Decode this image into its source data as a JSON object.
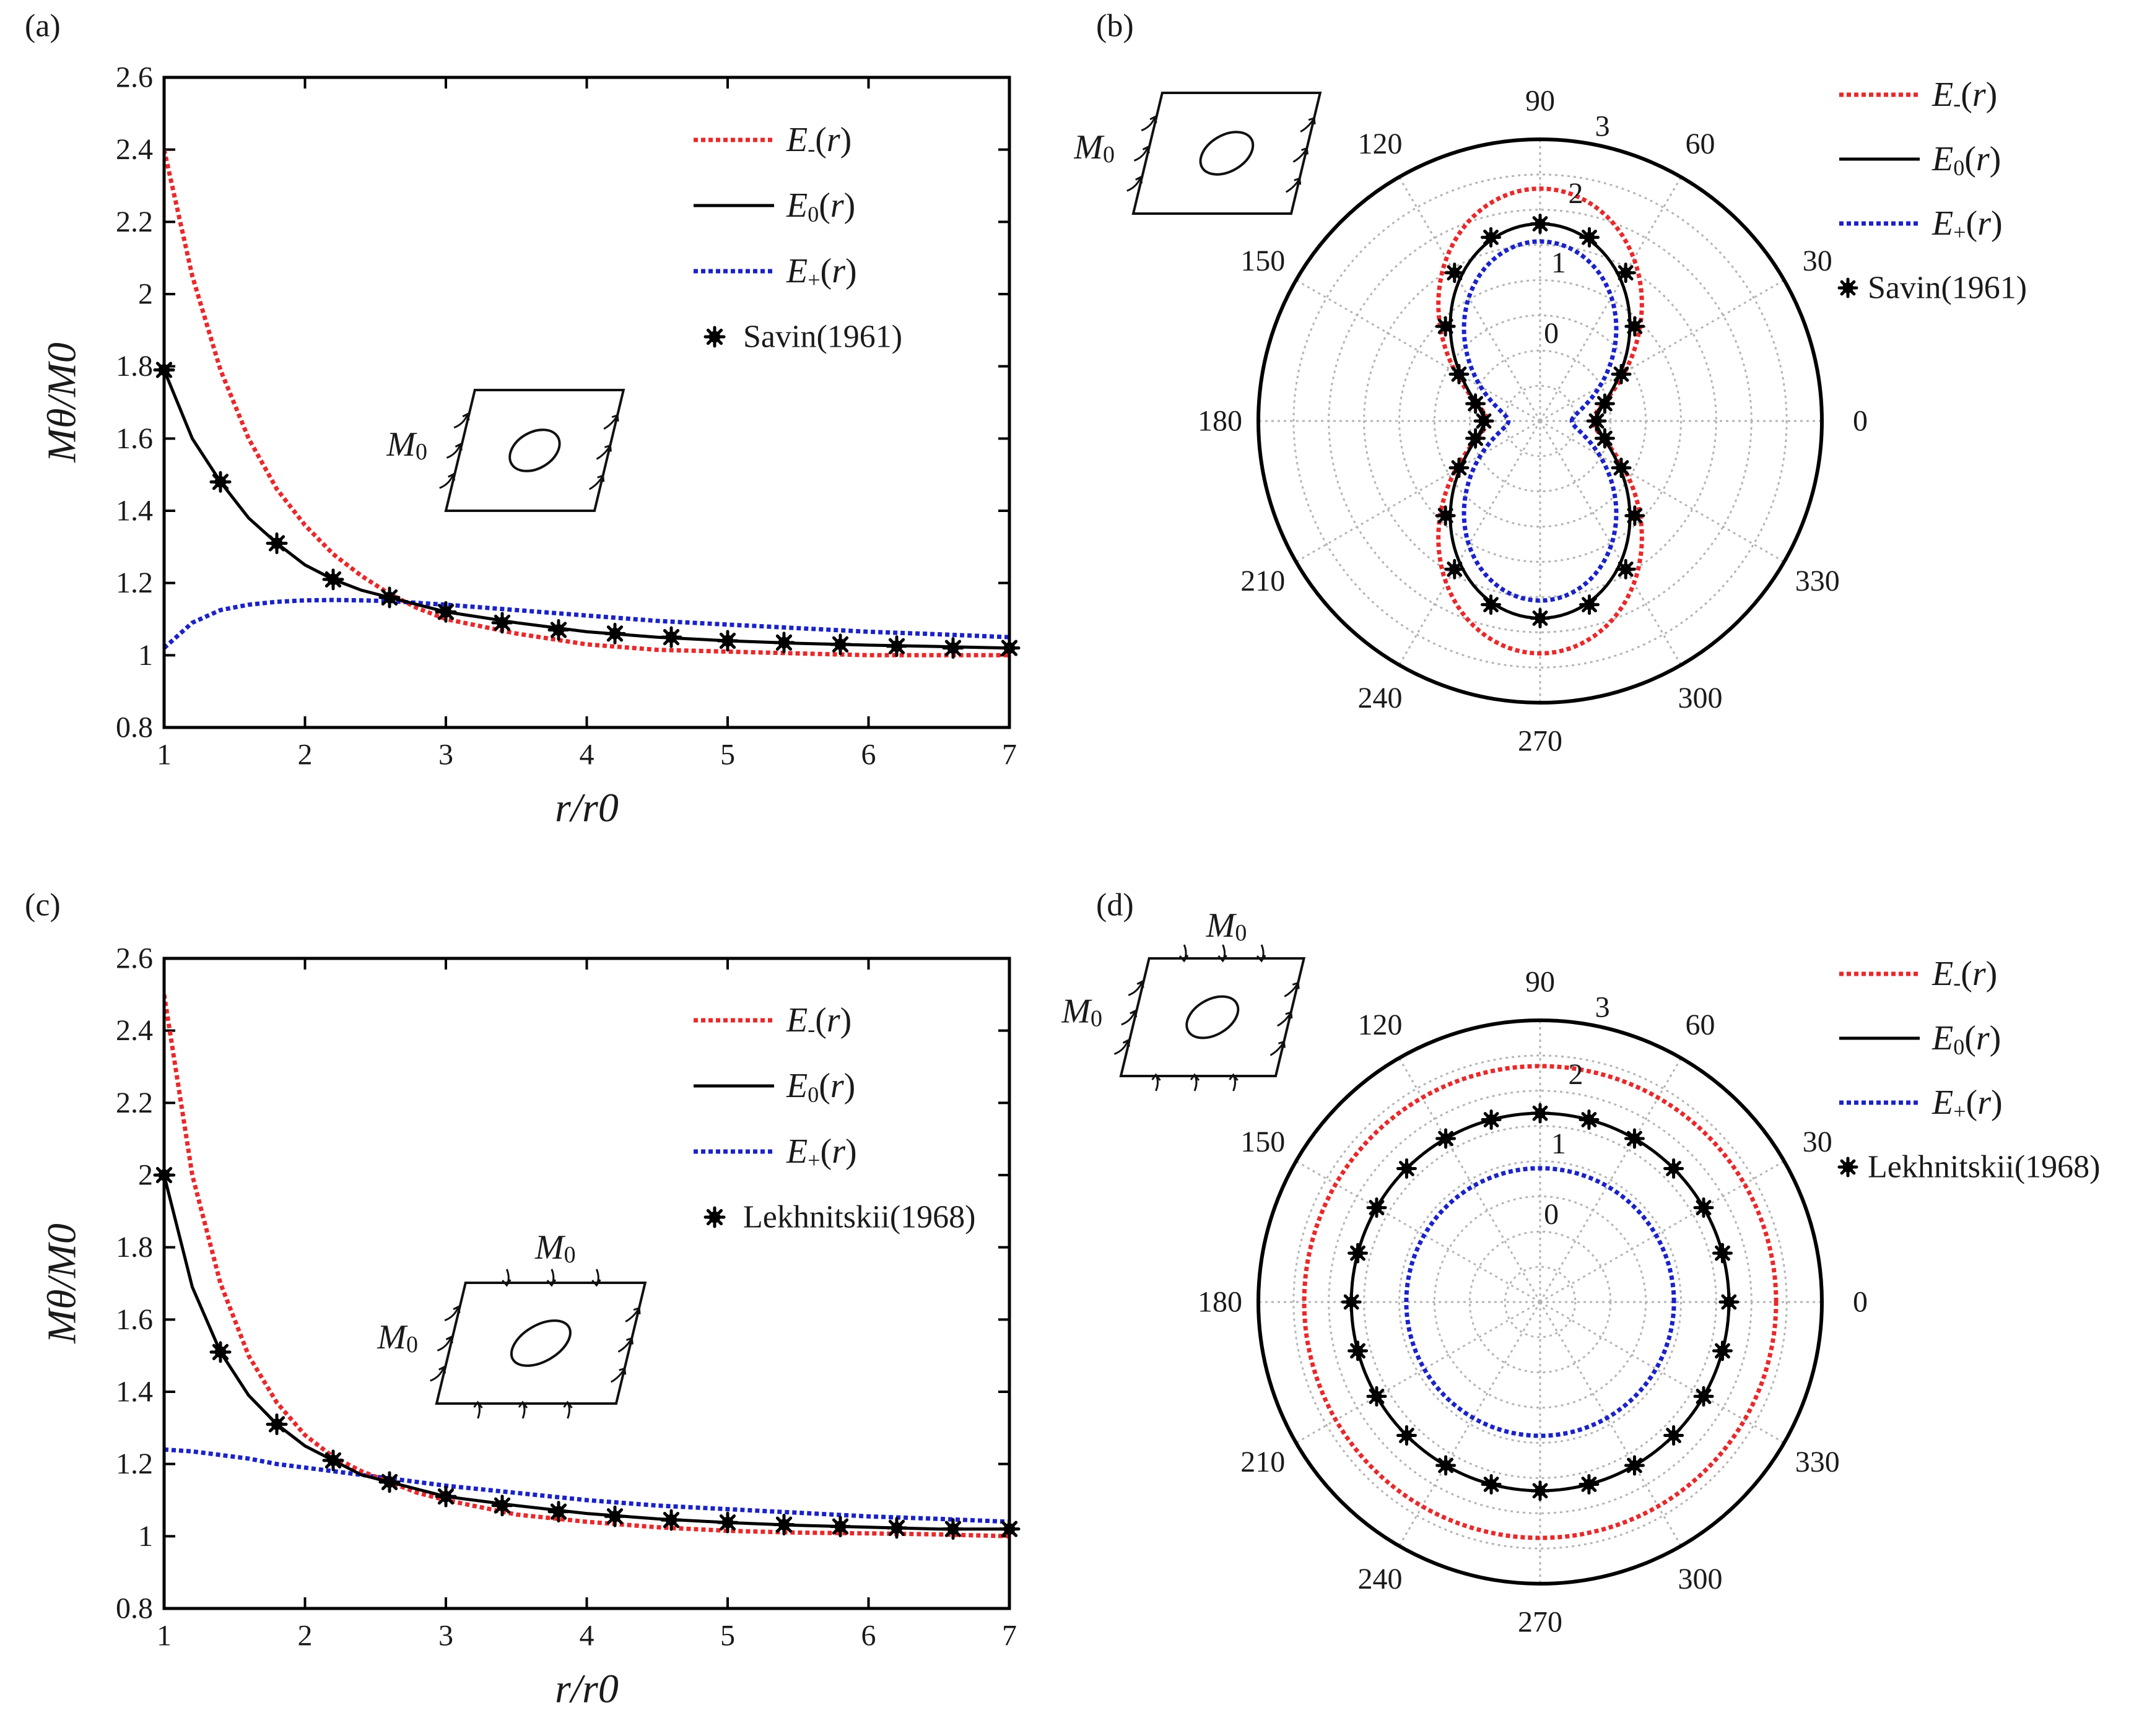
{
  "figure": {
    "colors": {
      "E_minus": "#e8292b",
      "E_zero": "#000000",
      "E_plus": "#1a22c8",
      "marker": "#000000"
    },
    "legend_series": [
      {
        "key": "E_minus",
        "sym": "E",
        "sub": "-",
        "arg": "r"
      },
      {
        "key": "E_zero",
        "sym": "E",
        "sub": "0",
        "arg": "r"
      },
      {
        "key": "E_plus",
        "sym": "E",
        "sub": "+",
        "arg": "r"
      }
    ],
    "inset_label": "M",
    "inset_sub": "0"
  },
  "chart_data": [
    {
      "id": "a",
      "panel_label": "(a)",
      "type": "line",
      "xlabel": "r/r0",
      "ylabel": "Mθ/M0",
      "xlim": [
        1,
        7
      ],
      "ylim": [
        0.8,
        2.6
      ],
      "xticks": [
        "1",
        "2",
        "3",
        "4",
        "5",
        "6",
        "7"
      ],
      "yticks": [
        "0.8",
        "1",
        "1.2",
        "1.4",
        "1.6",
        "1.8",
        "2",
        "2.2",
        "2.4",
        "2.6"
      ],
      "reference": "Savin(1961)",
      "series": [
        {
          "name": "E-(r)",
          "x": [
            1,
            1.2,
            1.4,
            1.6,
            1.8,
            2,
            2.2,
            2.4,
            2.6,
            2.8,
            3,
            3.5,
            4,
            4.5,
            5,
            5.5,
            6,
            6.5,
            7
          ],
          "y": [
            2.4,
            2.05,
            1.79,
            1.6,
            1.46,
            1.36,
            1.28,
            1.22,
            1.17,
            1.13,
            1.1,
            1.06,
            1.03,
            1.015,
            1.01,
            1.005,
            1.0,
            1.0,
            1.0
          ]
        },
        {
          "name": "E0(r)",
          "x": [
            1,
            1.2,
            1.4,
            1.6,
            1.8,
            2,
            2.2,
            2.4,
            2.6,
            2.8,
            3,
            3.5,
            4,
            4.5,
            5,
            5.5,
            6,
            6.5,
            7
          ],
          "y": [
            1.79,
            1.6,
            1.48,
            1.38,
            1.31,
            1.25,
            1.21,
            1.18,
            1.16,
            1.14,
            1.12,
            1.09,
            1.065,
            1.05,
            1.04,
            1.033,
            1.028,
            1.024,
            1.02
          ]
        },
        {
          "name": "E+(r)",
          "x": [
            1,
            1.2,
            1.4,
            1.6,
            1.8,
            2,
            2.2,
            2.4,
            2.6,
            2.8,
            3,
            3.5,
            4,
            4.5,
            5,
            5.5,
            6,
            6.5,
            7
          ],
          "y": [
            1.02,
            1.09,
            1.125,
            1.14,
            1.148,
            1.152,
            1.153,
            1.152,
            1.15,
            1.145,
            1.14,
            1.125,
            1.11,
            1.095,
            1.085,
            1.075,
            1.065,
            1.058,
            1.05
          ]
        }
      ],
      "markers": {
        "x": [
          1,
          1.4,
          1.8,
          2.2,
          2.6,
          3,
          3.4,
          3.8,
          4.2,
          4.6,
          5,
          5.4,
          5.8,
          6.2,
          6.6,
          7
        ],
        "y": [
          1.79,
          1.48,
          1.31,
          1.21,
          1.16,
          1.12,
          1.09,
          1.07,
          1.06,
          1.05,
          1.04,
          1.035,
          1.03,
          1.025,
          1.02,
          1.02
        ]
      }
    },
    {
      "id": "b",
      "panel_label": "(b)",
      "type": "polar",
      "rlim": [
        -1,
        3
      ],
      "rticks": [
        "0",
        "1",
        "2",
        "3"
      ],
      "angle_ticks": [
        "0",
        "30",
        "60",
        "90",
        "120",
        "150",
        "180",
        "210",
        "240",
        "270",
        "300",
        "330"
      ],
      "reference": "Savin(1961)",
      "series": [
        {
          "name": "E-(r)",
          "model": "cos2",
          "a": 1,
          "b": 1.4
        },
        {
          "name": "E0(r)",
          "model": "cos2",
          "a": 0.3,
          "b": 1.5
        },
        {
          "name": "E+(r)",
          "model": "cos2",
          "a": 0.0,
          "b": 1.0
        }
      ],
      "markers": {
        "theta": [
          0,
          15,
          30,
          45,
          60,
          75,
          90,
          105,
          120,
          135,
          150,
          165,
          180,
          195,
          210,
          225,
          240,
          255,
          270,
          285,
          300,
          315,
          330,
          345
        ],
        "value": [
          -0.2,
          -0.05,
          0.33,
          0.9,
          1.43,
          1.7,
          1.8,
          1.7,
          1.43,
          0.9,
          0.33,
          -0.05,
          -0.2,
          -0.05,
          0.33,
          0.9,
          1.43,
          1.7,
          1.8,
          1.7,
          1.43,
          0.9,
          0.33,
          -0.05
        ]
      }
    },
    {
      "id": "c",
      "panel_label": "(c)",
      "type": "line",
      "xlabel": "r/r0",
      "ylabel": "Mθ/M0",
      "xlim": [
        1,
        7
      ],
      "ylim": [
        0.8,
        2.6
      ],
      "xticks": [
        "1",
        "2",
        "3",
        "4",
        "5",
        "6",
        "7"
      ],
      "yticks": [
        "0.8",
        "1",
        "1.2",
        "1.4",
        "1.6",
        "1.8",
        "2",
        "2.2",
        "2.4",
        "2.6"
      ],
      "reference": "Lekhnitskii(1968)",
      "series": [
        {
          "name": "E-(r)",
          "x": [
            1,
            1.2,
            1.4,
            1.6,
            1.8,
            2,
            2.2,
            2.4,
            2.6,
            2.8,
            3,
            3.5,
            4,
            4.5,
            5,
            5.5,
            6,
            6.5,
            7
          ],
          "y": [
            2.5,
            2.0,
            1.7,
            1.5,
            1.37,
            1.28,
            1.22,
            1.18,
            1.15,
            1.12,
            1.1,
            1.06,
            1.04,
            1.025,
            1.015,
            1.01,
            1.008,
            1.005,
            1.0
          ]
        },
        {
          "name": "E0(r)",
          "x": [
            1,
            1.2,
            1.4,
            1.6,
            1.8,
            2,
            2.2,
            2.4,
            2.6,
            2.8,
            3,
            3.5,
            4,
            4.5,
            5,
            5.5,
            6,
            6.5,
            7
          ],
          "y": [
            2.0,
            1.69,
            1.51,
            1.39,
            1.31,
            1.25,
            1.21,
            1.17,
            1.15,
            1.13,
            1.11,
            1.085,
            1.063,
            1.048,
            1.038,
            1.03,
            1.025,
            1.02,
            1.02
          ]
        },
        {
          "name": "E+(r)",
          "x": [
            1,
            1.2,
            1.4,
            1.6,
            1.8,
            2,
            2.2,
            2.4,
            2.6,
            2.8,
            3,
            3.5,
            4,
            4.5,
            5,
            5.5,
            6,
            6.5,
            7
          ],
          "y": [
            1.24,
            1.235,
            1.225,
            1.215,
            1.2,
            1.19,
            1.18,
            1.17,
            1.16,
            1.15,
            1.14,
            1.12,
            1.1,
            1.085,
            1.075,
            1.065,
            1.055,
            1.048,
            1.04
          ]
        }
      ],
      "markers": {
        "x": [
          1,
          1.4,
          1.8,
          2.2,
          2.6,
          3,
          3.4,
          3.8,
          4.2,
          4.6,
          5,
          5.4,
          5.8,
          6.2,
          6.6,
          7
        ],
        "y": [
          2.0,
          1.51,
          1.31,
          1.21,
          1.15,
          1.11,
          1.085,
          1.068,
          1.055,
          1.045,
          1.038,
          1.032,
          1.027,
          1.023,
          1.02,
          1.02
        ]
      }
    },
    {
      "id": "d",
      "panel_label": "(d)",
      "type": "polar",
      "rlim": [
        -1,
        3
      ],
      "rticks": [
        "0",
        "1",
        "2",
        "3"
      ],
      "angle_ticks": [
        "0",
        "30",
        "60",
        "90",
        "120",
        "150",
        "180",
        "210",
        "240",
        "270",
        "300",
        "330"
      ],
      "reference": "Lekhnitskii(1968)",
      "series": [
        {
          "name": "E-(r)",
          "model": "const",
          "value": 2.35
        },
        {
          "name": "E0(r)",
          "model": "const",
          "value": 1.68
        },
        {
          "name": "E+(r)",
          "model": "const",
          "value": 0.9
        }
      ],
      "markers": {
        "theta": [
          0,
          15,
          30,
          45,
          60,
          75,
          90,
          105,
          120,
          135,
          150,
          165,
          180,
          195,
          210,
          225,
          240,
          255,
          270,
          285,
          300,
          315,
          330,
          345
        ],
        "value": [
          1.68,
          1.68,
          1.68,
          1.68,
          1.68,
          1.68,
          1.68,
          1.68,
          1.68,
          1.68,
          1.68,
          1.68,
          1.68,
          1.68,
          1.68,
          1.68,
          1.68,
          1.68,
          1.68,
          1.68,
          1.68,
          1.68,
          1.68,
          1.68
        ]
      }
    }
  ]
}
